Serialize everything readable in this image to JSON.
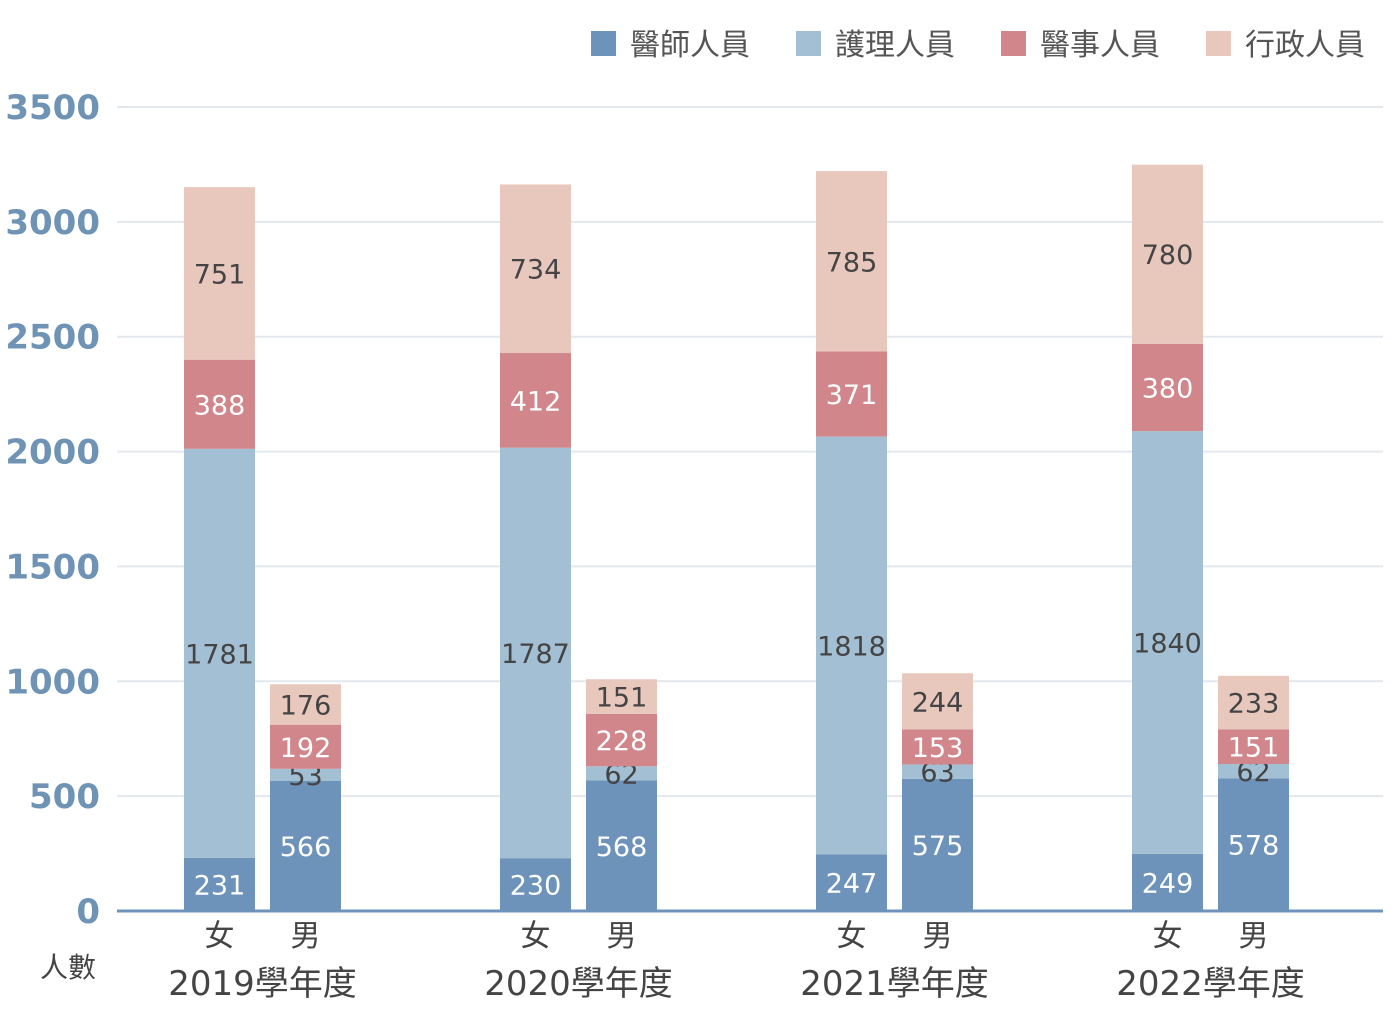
{
  "chart_data": {
    "type": "bar",
    "stacked": true,
    "ylabel": "人數",
    "ylim": [
      0,
      3500
    ],
    "yticks": [
      0,
      500,
      1000,
      1500,
      2000,
      2500,
      3000,
      3500
    ],
    "grid": true,
    "legend_position": "top-right",
    "groups": [
      "2019學年度",
      "2020學年度",
      "2021學年度",
      "2022學年度"
    ],
    "subcategories": [
      "女",
      "男"
    ],
    "series": [
      {
        "name": "醫師人員",
        "color": "#6e93bb",
        "label_color": "#ffffff",
        "values": [
          [
            231,
            566
          ],
          [
            230,
            568
          ],
          [
            247,
            575
          ],
          [
            249,
            578
          ]
        ]
      },
      {
        "name": "護理人員",
        "color": "#a3bfd4",
        "label_color": "#444444",
        "values": [
          [
            1781,
            53
          ],
          [
            1787,
            62
          ],
          [
            1818,
            63
          ],
          [
            1840,
            62
          ]
        ]
      },
      {
        "name": "醫事人員",
        "color": "#d0868a",
        "label_color": "#ffffff",
        "values": [
          [
            388,
            192
          ],
          [
            412,
            228
          ],
          [
            371,
            153
          ],
          [
            380,
            151
          ]
        ]
      },
      {
        "name": "行政人員",
        "color": "#e8c8bd",
        "label_color": "#444444",
        "values": [
          [
            751,
            176
          ],
          [
            734,
            151
          ],
          [
            785,
            244
          ],
          [
            780,
            233
          ]
        ]
      }
    ]
  }
}
